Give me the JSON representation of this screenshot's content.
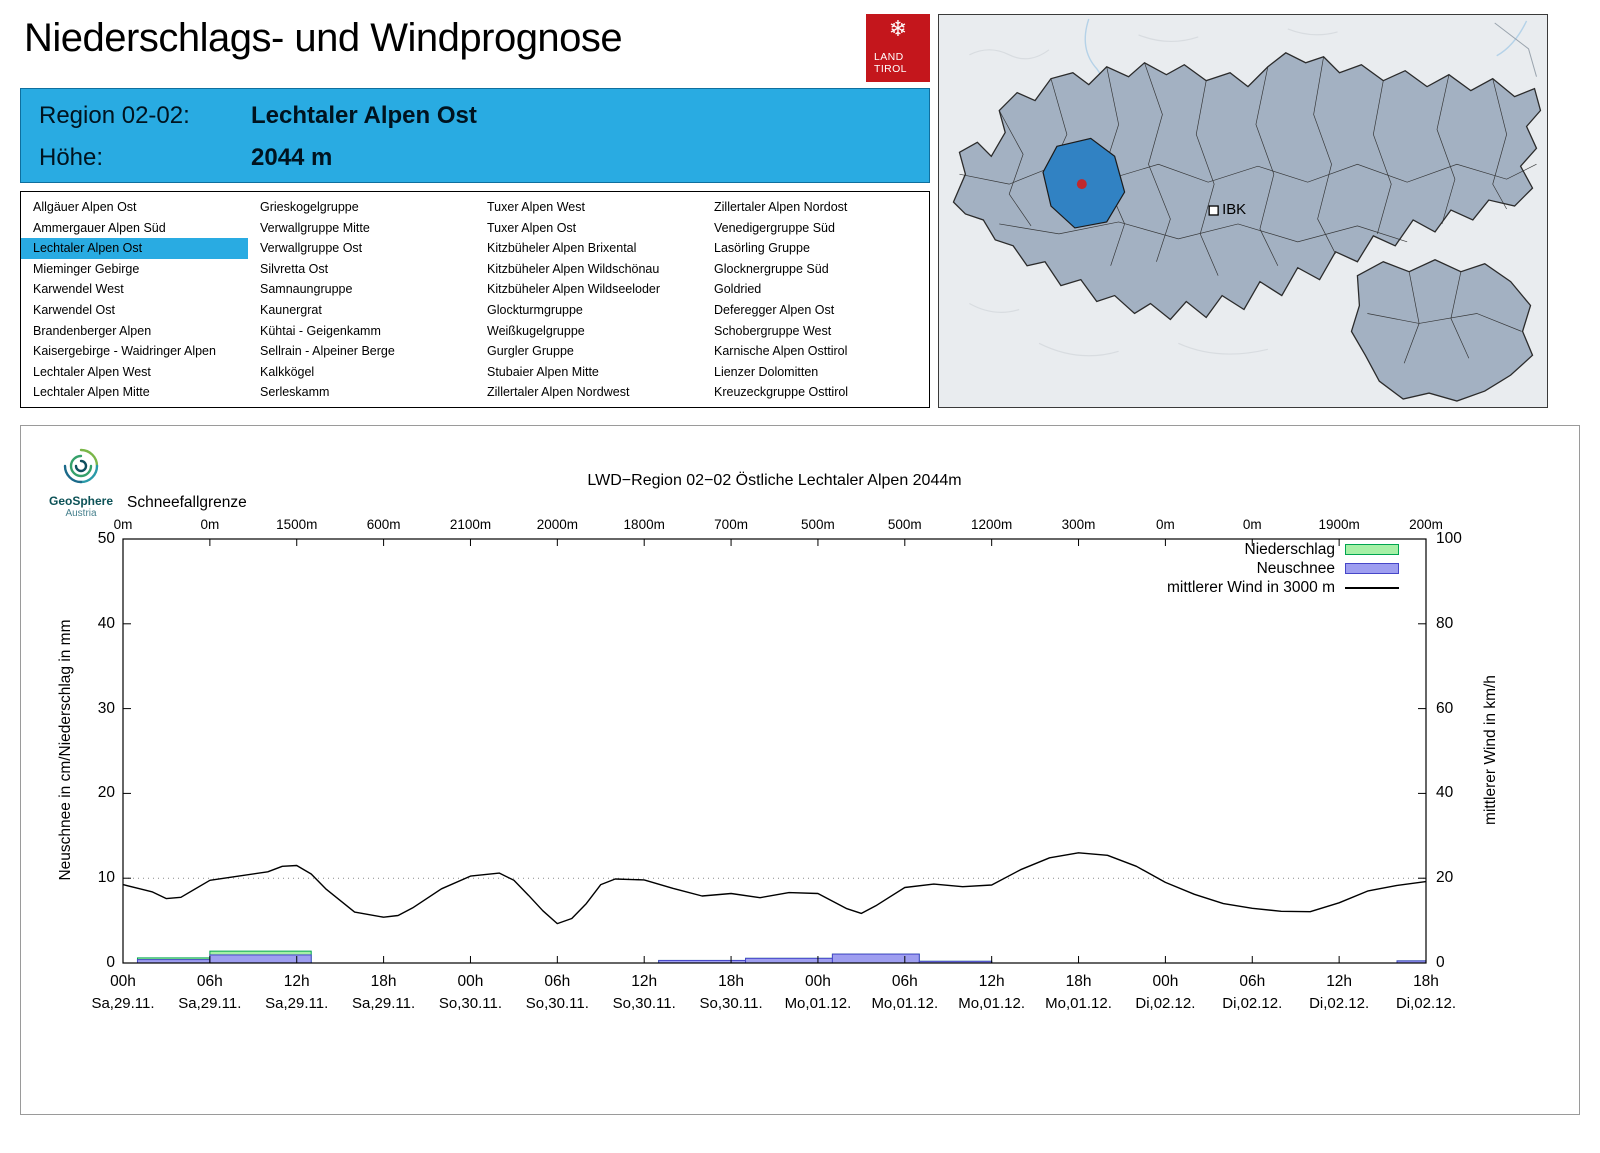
{
  "header": {
    "title": "Niederschlags- und Windprognose",
    "region_label": "Region 02-02:",
    "region_value": "Lechtaler Alpen Ost",
    "altitude_label": "Höhe:",
    "altitude_value": "2044 m"
  },
  "land_logo": {
    "line1": "LAND",
    "line2": "TIROL",
    "snowflake_icon": "❄",
    "color": "#c4161c"
  },
  "map": {
    "marker_label": "IBK",
    "selected_region_color": "#3182c3",
    "region_fill": "#a3b1c2"
  },
  "geosphere_logo": {
    "name": "GeoSphere",
    "sub": "Austria"
  },
  "region_list": {
    "selected": "Lechtaler Alpen Ost",
    "highlight_color": "#29abe2",
    "columns": [
      [
        "Allgäuer Alpen Ost",
        "Ammergauer Alpen Süd",
        "Lechtaler Alpen Ost",
        "Mieminger Gebirge",
        "Karwendel West",
        "Karwendel Ost",
        "Brandenberger Alpen",
        "Kaisergebirge - Waidringer Alpen",
        "Lechtaler Alpen West",
        "Lechtaler Alpen Mitte"
      ],
      [
        "Grieskogelgruppe",
        "Verwallgruppe Mitte",
        "Verwallgruppe Ost",
        "Silvretta Ost",
        "Samnaungruppe",
        "Kaunergrat",
        "Kühtai - Geigenkamm",
        "Sellrain - Alpeiner Berge",
        "Kalkkögel",
        "Serleskamm"
      ],
      [
        "Tuxer Alpen West",
        "Tuxer Alpen Ost",
        "Kitzbüheler Alpen Brixental",
        "Kitzbüheler Alpen Wildschönau",
        "Kitzbüheler Alpen Wildseeloder",
        "Glockturmgruppe",
        "Weißkugelgruppe",
        "Gurgler Gruppe",
        "Stubaier Alpen Mitte",
        "Zillertaler Alpen Nordwest"
      ],
      [
        "Zillertaler Alpen Nordost",
        "Venedigergruppe Süd",
        "Lasörling Gruppe",
        "Glocknergruppe Süd",
        "Goldried",
        "Deferegger Alpen Ost",
        "Schobergruppe West",
        "Karnische Alpen Osttirol",
        "Lienzer Dolomitten",
        "Kreuzeckgruppe Osttirol"
      ]
    ]
  },
  "chart_data": {
    "type": "line",
    "title": "LWD−Region 02−02 Östliche Lechtaler Alpen 2044m",
    "snowline_label": "Schneefallgrenze",
    "snowline_labels": [
      "0m",
      "0m",
      "1500m",
      "600m",
      "2100m",
      "2000m",
      "1800m",
      "700m",
      "500m",
      "500m",
      "1200m",
      "300m",
      "0m",
      "0m",
      "1900m",
      "200m"
    ],
    "snowfall_line_m": [
      0,
      0,
      1500,
      600,
      2100,
      2000,
      1800,
      700,
      500,
      500,
      1200,
      300,
      0,
      0,
      1900,
      200
    ],
    "ylabel_left": "Neuschnee in cm/Niederschlag in mm",
    "ylabel_right": "mittlerer Wind in km/h",
    "ylim_left": [
      0,
      50
    ],
    "ylim_right": [
      0,
      100
    ],
    "yticks_left": [
      0,
      10,
      20,
      30,
      40,
      50
    ],
    "yticks_right": [
      0,
      20,
      40,
      60,
      80,
      100
    ],
    "grid_y_left": [
      10
    ],
    "x_range": [
      0,
      90
    ],
    "x_ticks": [
      {
        "hour": 0,
        "time": "00h",
        "date": "Sa,29.11."
      },
      {
        "hour": 6,
        "time": "06h",
        "date": "Sa,29.11."
      },
      {
        "hour": 12,
        "time": "12h",
        "date": "Sa,29.11."
      },
      {
        "hour": 18,
        "time": "18h",
        "date": "Sa,29.11."
      },
      {
        "hour": 24,
        "time": "00h",
        "date": "So,30.11."
      },
      {
        "hour": 30,
        "time": "06h",
        "date": "So,30.11."
      },
      {
        "hour": 36,
        "time": "12h",
        "date": "So,30.11."
      },
      {
        "hour": 42,
        "time": "18h",
        "date": "So,30.11."
      },
      {
        "hour": 48,
        "time": "00h",
        "date": "Mo,01.12."
      },
      {
        "hour": 54,
        "time": "06h",
        "date": "Mo,01.12."
      },
      {
        "hour": 60,
        "time": "12h",
        "date": "Mo,01.12."
      },
      {
        "hour": 66,
        "time": "18h",
        "date": "Mo,01.12."
      },
      {
        "hour": 72,
        "time": "00h",
        "date": "Di,02.12."
      },
      {
        "hour": 78,
        "time": "06h",
        "date": "Di,02.12."
      },
      {
        "hour": 84,
        "time": "12h",
        "date": "Di,02.12."
      },
      {
        "hour": 90,
        "time": "18h",
        "date": "Di,02.12."
      }
    ],
    "series": [
      {
        "name": "Niederschlag",
        "type": "bar",
        "axis": "left",
        "unit": "mm",
        "fill": "#a6f0a6",
        "stroke": "#00a550",
        "segments": [
          {
            "from": 1,
            "to": 6,
            "value": 0.6
          },
          {
            "from": 6,
            "to": 13,
            "value": 1.4
          },
          {
            "from": 37,
            "to": 43,
            "value": 0.3
          },
          {
            "from": 43,
            "to": 49,
            "value": 0.55
          },
          {
            "from": 49,
            "to": 55,
            "value": 1.05
          },
          {
            "from": 55,
            "to": 60,
            "value": 0.2
          },
          {
            "from": 88,
            "to": 90,
            "value": 0.25
          }
        ]
      },
      {
        "name": "Neuschnee",
        "type": "bar",
        "axis": "left",
        "unit": "cm",
        "fill": "#9e9ef0",
        "stroke": "#4646c8",
        "segments": [
          {
            "from": 1,
            "to": 6,
            "value": 0.4
          },
          {
            "from": 6,
            "to": 13,
            "value": 0.95
          },
          {
            "from": 37,
            "to": 43,
            "value": 0.3
          },
          {
            "from": 43,
            "to": 49,
            "value": 0.55
          },
          {
            "from": 49,
            "to": 55,
            "value": 1.05
          },
          {
            "from": 55,
            "to": 60,
            "value": 0.2
          },
          {
            "from": 88,
            "to": 90,
            "value": 0.25
          }
        ]
      },
      {
        "name": "mittlerer Wind in 3000 m",
        "type": "line",
        "axis": "right",
        "unit": "km/h",
        "color": "#000000",
        "points": [
          [
            0,
            18.5
          ],
          [
            2,
            16.8
          ],
          [
            3,
            15.2
          ],
          [
            4,
            15.5
          ],
          [
            6,
            19.5
          ],
          [
            8,
            20.5
          ],
          [
            10,
            21.5
          ],
          [
            11,
            22.8
          ],
          [
            12,
            23
          ],
          [
            13,
            21
          ],
          [
            14,
            17.5
          ],
          [
            16,
            12
          ],
          [
            18,
            10.8
          ],
          [
            19,
            11.2
          ],
          [
            20,
            13
          ],
          [
            22,
            17.5
          ],
          [
            24,
            20.5
          ],
          [
            26,
            21.2
          ],
          [
            27,
            19.5
          ],
          [
            28,
            16
          ],
          [
            29,
            12.3
          ],
          [
            30,
            9.3
          ],
          [
            31,
            10.5
          ],
          [
            32,
            14
          ],
          [
            33,
            18.5
          ],
          [
            34,
            19.8
          ],
          [
            36,
            19.6
          ],
          [
            38,
            17.6
          ],
          [
            40,
            15.8
          ],
          [
            42,
            16.4
          ],
          [
            44,
            15.4
          ],
          [
            46,
            16.6
          ],
          [
            48,
            16.4
          ],
          [
            50,
            12.8
          ],
          [
            51,
            11.7
          ],
          [
            52,
            13.5
          ],
          [
            54,
            17.8
          ],
          [
            56,
            18.6
          ],
          [
            58,
            18
          ],
          [
            60,
            18.4
          ],
          [
            62,
            22
          ],
          [
            64,
            24.8
          ],
          [
            66,
            26
          ],
          [
            68,
            25.4
          ],
          [
            70,
            22.8
          ],
          [
            72,
            19
          ],
          [
            74,
            16.2
          ],
          [
            76,
            14
          ],
          [
            78,
            12.9
          ],
          [
            80,
            12.2
          ],
          [
            82,
            12.1
          ],
          [
            84,
            14.2
          ],
          [
            86,
            17
          ],
          [
            88,
            18.3
          ],
          [
            90,
            19.2
          ]
        ]
      }
    ]
  }
}
